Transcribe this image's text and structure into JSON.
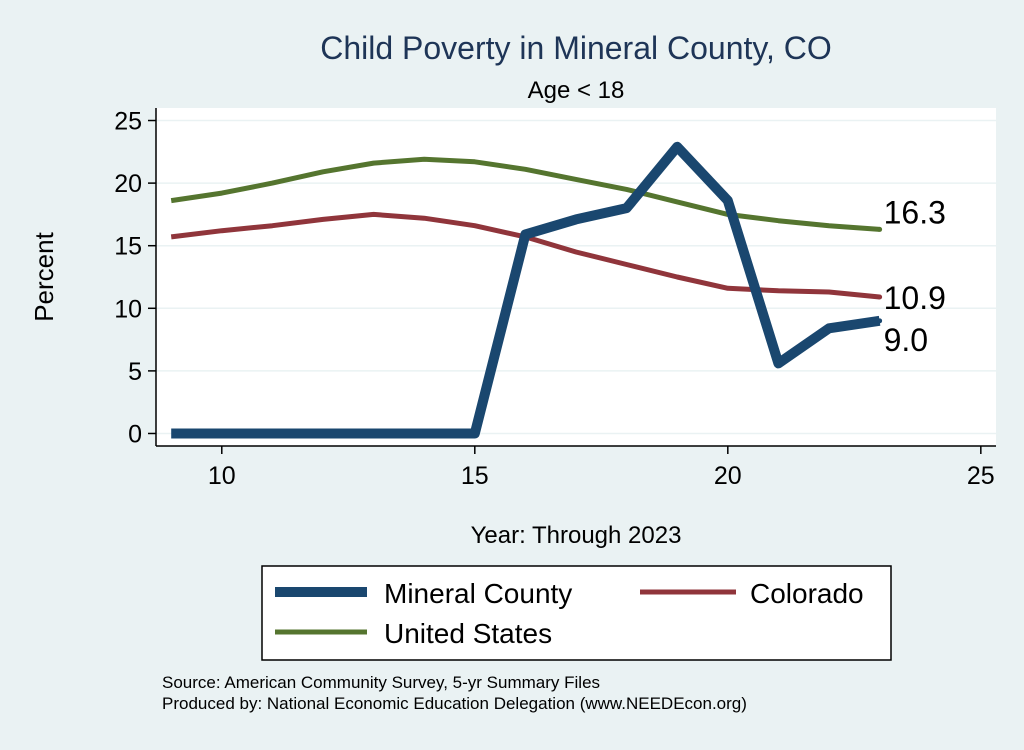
{
  "chart_data": {
    "type": "line",
    "title": "Child Poverty in Mineral County, CO",
    "subtitle": "Age < 18",
    "xlabel": "Year: Through 2023",
    "ylabel": "Percent",
    "xlim": [
      8.7,
      25.3
    ],
    "ylim": [
      -1,
      26
    ],
    "x_ticks": [
      10,
      15,
      20,
      25
    ],
    "y_ticks": [
      0,
      5,
      10,
      15,
      20,
      25
    ],
    "grid": true,
    "legend_position": "bottom",
    "series": [
      {
        "name": "Mineral County",
        "color": "#1a476f",
        "x": [
          9,
          10,
          11,
          12,
          13,
          14,
          15,
          16,
          17,
          18,
          19,
          20,
          21,
          22,
          23
        ],
        "values": [
          0,
          0,
          0,
          0,
          0,
          0,
          0,
          15.9,
          17.1,
          18.0,
          22.9,
          18.6,
          5.6,
          8.4,
          9.0
        ],
        "end_label": "9.0"
      },
      {
        "name": "Colorado",
        "color": "#90353b",
        "x": [
          9,
          10,
          11,
          12,
          13,
          14,
          15,
          16,
          17,
          18,
          19,
          20,
          21,
          22,
          23
        ],
        "values": [
          15.7,
          16.2,
          16.6,
          17.1,
          17.5,
          17.2,
          16.6,
          15.7,
          14.5,
          13.5,
          12.5,
          11.6,
          11.4,
          11.3,
          10.9
        ],
        "end_label": "10.9"
      },
      {
        "name": "United States",
        "color": "#55752f",
        "x": [
          9,
          10,
          11,
          12,
          13,
          14,
          15,
          16,
          17,
          18,
          19,
          20,
          21,
          22,
          23
        ],
        "values": [
          18.6,
          19.2,
          20.0,
          20.9,
          21.6,
          21.9,
          21.7,
          21.1,
          20.3,
          19.5,
          18.5,
          17.5,
          17.0,
          16.6,
          16.3
        ],
        "end_label": "16.3"
      }
    ],
    "notes": [
      "Source: American Community Survey, 5-yr Summary Files",
      "Produced by: National Economic Education Delegation (www.NEEDEcon.org)"
    ]
  }
}
